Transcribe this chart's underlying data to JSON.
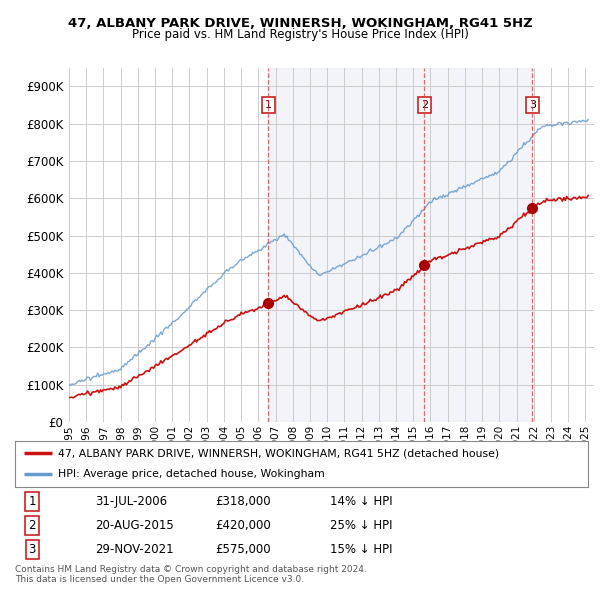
{
  "title": "47, ALBANY PARK DRIVE, WINNERSH, WOKINGHAM, RG41 5HZ",
  "subtitle": "Price paid vs. HM Land Registry's House Price Index (HPI)",
  "ylabel_ticks": [
    "£0",
    "£100K",
    "£200K",
    "£300K",
    "£400K",
    "£500K",
    "£600K",
    "£700K",
    "£800K",
    "£900K"
  ],
  "ytick_values": [
    0,
    100000,
    200000,
    300000,
    400000,
    500000,
    600000,
    700000,
    800000,
    900000
  ],
  "ylim": [
    0,
    950000
  ],
  "xlim_start": 1995.0,
  "xlim_end": 2025.5,
  "sale_dates": [
    2006.58,
    2015.64,
    2021.92
  ],
  "sale_prices": [
    318000,
    420000,
    575000
  ],
  "sale_labels": [
    "1",
    "2",
    "3"
  ],
  "vline_color": "#dd4444",
  "sale_dot_color": "#aa0000",
  "hpi_line_color": "#6699cc",
  "price_line_color": "#cc1111",
  "shade_color": "#ddeeff",
  "legend_label_price": "47, ALBANY PARK DRIVE, WINNERSH, WOKINGHAM, RG41 5HZ (detached house)",
  "legend_label_hpi": "HPI: Average price, detached house, Wokingham",
  "table_rows": [
    [
      "1",
      "31-JUL-2006",
      "£318,000",
      "14% ↓ HPI"
    ],
    [
      "2",
      "20-AUG-2015",
      "£420,000",
      "25% ↓ HPI"
    ],
    [
      "3",
      "29-NOV-2021",
      "£575,000",
      "15% ↓ HPI"
    ]
  ],
  "footnote": "Contains HM Land Registry data © Crown copyright and database right 2024.\nThis data is licensed under the Open Government Licence v3.0.",
  "background_color": "#ffffff",
  "plot_background": "#ffffff",
  "grid_color": "#cccccc"
}
